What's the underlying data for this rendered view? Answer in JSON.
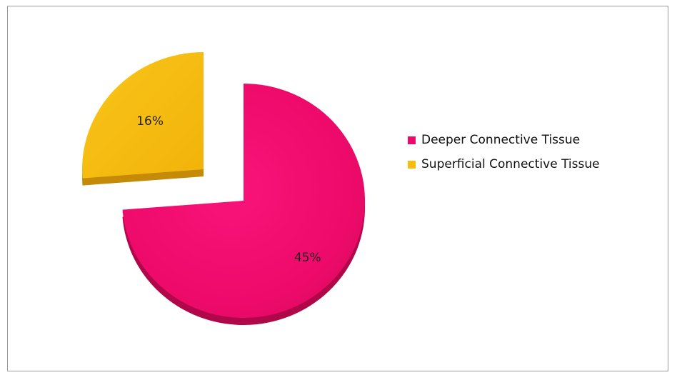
{
  "chart_data": {
    "type": "pie",
    "title": "",
    "slices": [
      {
        "name": "Deeper Connective Tissue",
        "value": 45,
        "label": "45%",
        "color": "#EE0A6A"
      },
      {
        "name": "Superficial Connective Tissue",
        "value": 16,
        "label": "16%",
        "color": "#F6BC0E"
      }
    ],
    "exploded_slice": "Superficial Connective Tissue",
    "style": "3d",
    "legend": {
      "position": "right"
    }
  },
  "legend": {
    "items": [
      {
        "label": "Deeper Connective Tissue",
        "color": "#EE0A6A"
      },
      {
        "label": "Superficial Connective Tissue",
        "color": "#F6BC0E"
      }
    ]
  }
}
